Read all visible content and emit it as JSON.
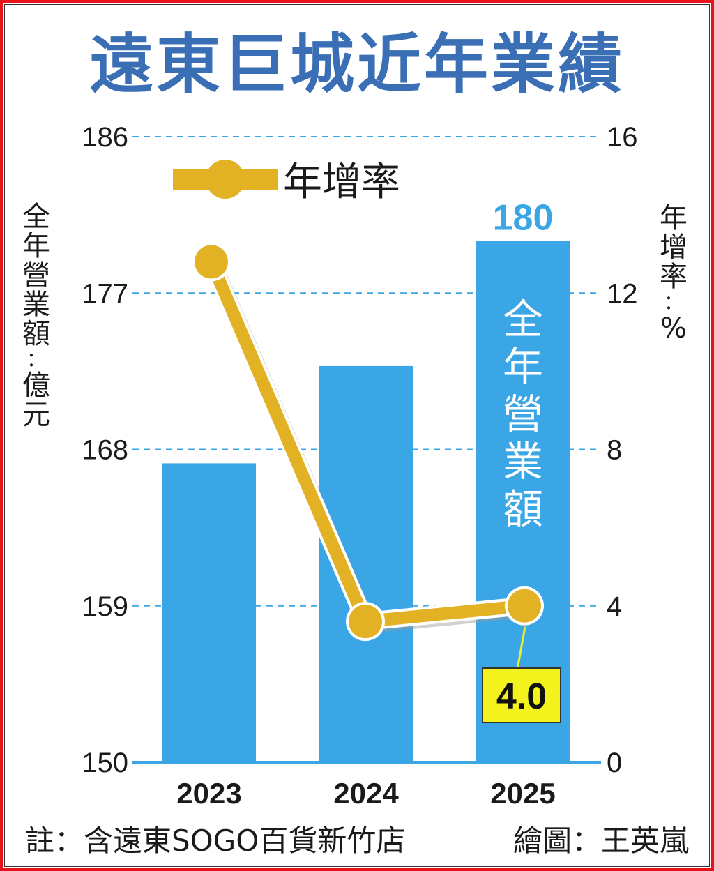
{
  "chart_data": {
    "type": "bar",
    "title": "遠東巨城近年業績",
    "categories": [
      "2023",
      "2024",
      "2025"
    ],
    "series": [
      {
        "name": "全年營業額",
        "type": "bar",
        "axis": "left",
        "values": [
          167.2,
          172.8,
          180
        ],
        "color": "#3aa6e6",
        "data_labels": [
          "",
          "",
          "180"
        ]
      },
      {
        "name": "年增率",
        "type": "line",
        "axis": "right",
        "values": [
          12.8,
          3.6,
          4.0
        ],
        "color": "#e3b224",
        "data_labels": [
          "",
          "",
          "4.0"
        ]
      }
    ],
    "y_left": {
      "label": "全年營業額：億元",
      "ylim": [
        150,
        186
      ],
      "ticks": [
        "150",
        "159",
        "168",
        "177",
        "186"
      ]
    },
    "y_right": {
      "label": "年增率：%",
      "ylim": [
        0,
        16
      ],
      "ticks": [
        "0",
        "4",
        "8",
        "12",
        "16"
      ]
    },
    "bar_inner_label": "全年營業額",
    "legend": {
      "label": "年增率",
      "position": "top-left"
    },
    "grid": true,
    "note": "註：含遠東SOGO百貨新竹店",
    "credit": "繪圖：王英嵐"
  }
}
